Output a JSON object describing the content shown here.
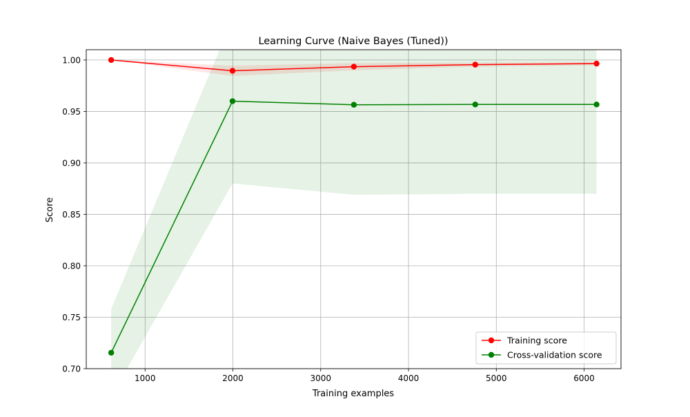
{
  "chart_data": {
    "type": "line",
    "title": "Learning Curve (Naive Bayes (Tuned))",
    "xlabel": "Training examples",
    "ylabel": "Score",
    "xlim": [
      330,
      6420
    ],
    "ylim": [
      0.7,
      1.01
    ],
    "x_ticks": [
      1000,
      2000,
      3000,
      4000,
      5000,
      6000
    ],
    "x_tick_labels": [
      "1000",
      "2000",
      "3000",
      "4000",
      "5000",
      "6000"
    ],
    "y_ticks": [
      0.7,
      0.75,
      0.8,
      0.85,
      0.9,
      0.95,
      1.0
    ],
    "y_tick_labels": [
      "0.70",
      "0.75",
      "0.80",
      "0.85",
      "0.90",
      "0.95",
      "1.00"
    ],
    "grid": true,
    "legend_position": "bottom-right",
    "x": [
      614,
      1996,
      3378,
      4760,
      6142
    ],
    "series": [
      {
        "name": "Training score",
        "color": "#ff0000",
        "band_color": "#ff0000",
        "values": [
          1.0,
          0.9895,
          0.9935,
          0.9955,
          0.9965
        ],
        "lower": [
          1.0,
          0.9845,
          0.99,
          0.9935,
          0.995
        ],
        "upper": [
          1.0,
          0.9945,
          0.997,
          0.9975,
          0.998
        ]
      },
      {
        "name": "Cross-validation score",
        "color": "#008000",
        "band_color": "#008000",
        "values": [
          0.7155,
          0.96,
          0.9565,
          0.9568,
          0.9568
        ],
        "lower": [
          0.673,
          0.88,
          0.869,
          0.87,
          0.87
        ],
        "upper": [
          0.758,
          1.04,
          1.044,
          1.044,
          1.044
        ]
      }
    ]
  }
}
